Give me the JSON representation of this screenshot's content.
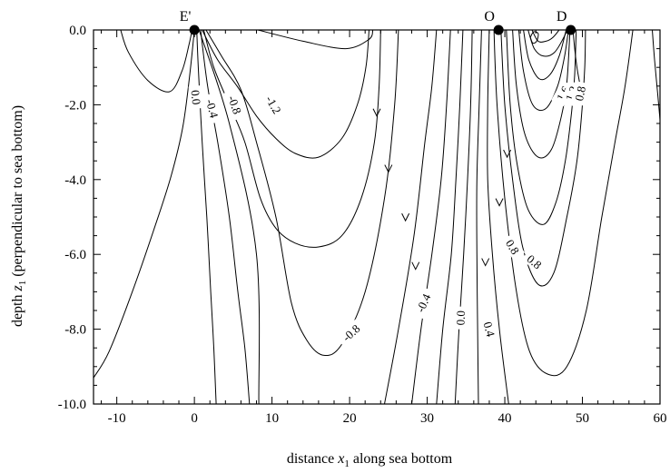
{
  "chart_data": {
    "type": "contour",
    "xlabel": {
      "prefix": "distance ",
      "var": "x",
      "sub": "1",
      "suffix": " along sea bottom"
    },
    "ylabel": {
      "prefix": "depth ",
      "var": "z",
      "sub": "1",
      "suffix": "  (perpendicular to sea bottom)"
    },
    "xlim": [
      -13,
      60
    ],
    "ylim": [
      -10,
      0
    ],
    "x_ticks": [
      -10,
      0,
      10,
      20,
      30,
      40,
      50,
      60
    ],
    "x_tick_labels": [
      "-10",
      "0",
      "10",
      "20",
      "30",
      "40",
      "50",
      "60"
    ],
    "y_ticks": [
      0,
      -2,
      -4,
      -6,
      -8,
      -10
    ],
    "y_tick_labels": [
      "0.0",
      "-2.0",
      "-4.0",
      "-6.0",
      "-8.0",
      "-10.0"
    ],
    "x_minor_step": 2,
    "y_minor_step": 0.5,
    "surface_points": [
      {
        "label": "E'",
        "x": 0,
        "z": 0
      },
      {
        "label": "O",
        "x": 39.2,
        "z": 0
      },
      {
        "label": "D",
        "x": 48.5,
        "z": 0
      }
    ],
    "contours": [
      {
        "points": [
          [
            -13,
            -9.3
          ],
          [
            -11,
            -8.6
          ],
          [
            -8,
            -7
          ],
          [
            -5,
            -5.2
          ],
          [
            -3,
            -3.9
          ],
          [
            -1.5,
            -2.6
          ],
          [
            -0.6,
            -1.2
          ],
          [
            0,
            0
          ]
        ]
      },
      {
        "points": [
          [
            0.3,
            0
          ],
          [
            0.5,
            -1
          ],
          [
            1,
            -3
          ],
          [
            1.6,
            -5
          ],
          [
            2.1,
            -7
          ],
          [
            2.5,
            -8.5
          ],
          [
            2.8,
            -10
          ]
        ]
      },
      {
        "points": [
          [
            0.8,
            0
          ],
          [
            1.7,
            -1.5
          ],
          [
            3,
            -3
          ],
          [
            4.5,
            -5
          ],
          [
            5.6,
            -7
          ],
          [
            6.5,
            -8.5
          ],
          [
            7.1,
            -10
          ]
        ]
      },
      {
        "points": [
          [
            1.2,
            0
          ],
          [
            2.5,
            -1
          ],
          [
            4.5,
            -2
          ],
          [
            6.5,
            -3
          ],
          [
            8.5,
            -4.5
          ],
          [
            10.5,
            -5.3
          ],
          [
            13,
            -5.7
          ],
          [
            16,
            -5.8
          ],
          [
            19,
            -5.5
          ],
          [
            21.5,
            -4.5
          ],
          [
            23.2,
            -3
          ],
          [
            23.8,
            -1.5
          ],
          [
            24,
            0
          ]
        ]
      },
      {
        "points": [
          [
            1,
            0
          ],
          [
            3,
            -0.8
          ],
          [
            5.5,
            -1.5
          ],
          [
            8,
            -2.3
          ],
          [
            10.5,
            -2.9
          ],
          [
            13,
            -3.3
          ],
          [
            16,
            -3.4
          ],
          [
            19,
            -2.9
          ],
          [
            21,
            -2
          ],
          [
            22.1,
            -1
          ],
          [
            22.5,
            0
          ]
        ]
      },
      {
        "points": [
          [
            1.5,
            0
          ],
          [
            3.5,
            -0.7
          ],
          [
            6,
            -1.6
          ],
          [
            8,
            -3
          ],
          [
            10.5,
            -5
          ],
          [
            12.5,
            -7.3
          ],
          [
            14.5,
            -8.3
          ],
          [
            16.7,
            -8.7
          ],
          [
            19,
            -8.4
          ],
          [
            22,
            -7
          ],
          [
            24.5,
            -4.5
          ],
          [
            25.8,
            -2
          ],
          [
            26.3,
            0
          ]
        ]
      },
      {
        "points": [
          [
            0.6,
            0
          ],
          [
            4.5,
            -2.5
          ],
          [
            8,
            -6
          ],
          [
            8.3,
            -10
          ]
        ]
      },
      {
        "points": [
          [
            -9.5,
            0
          ],
          [
            -8.5,
            -0.6
          ],
          [
            -6,
            -1.35
          ],
          [
            -3.2,
            -1.65
          ],
          [
            -1.6,
            -1.1
          ],
          [
            -0.7,
            -0.4
          ],
          [
            -0.3,
            0
          ]
        ]
      },
      {
        "points": [
          [
            8.2,
            0
          ],
          [
            14,
            -0.3
          ],
          [
            19.5,
            -0.5
          ],
          [
            22.5,
            -0.25
          ],
          [
            23,
            0
          ]
        ]
      },
      {
        "points": [
          [
            24.5,
            -10
          ],
          [
            26.3,
            -8
          ],
          [
            28.3,
            -5.5
          ],
          [
            29.7,
            -3
          ],
          [
            30.6,
            -1.5
          ],
          [
            31.2,
            0
          ]
        ]
      },
      {
        "points": [
          [
            28,
            -10
          ],
          [
            29.2,
            -8
          ],
          [
            30.6,
            -6
          ],
          [
            31.8,
            -4
          ],
          [
            32.5,
            -2
          ],
          [
            33,
            0
          ]
        ]
      },
      {
        "points": [
          [
            31.2,
            -10
          ],
          [
            32,
            -8
          ],
          [
            33.1,
            -6
          ],
          [
            33.7,
            -4
          ],
          [
            34.2,
            -2
          ],
          [
            34.6,
            0
          ]
        ]
      },
      {
        "points": [
          [
            33.6,
            -10
          ],
          [
            34.1,
            -8
          ],
          [
            34.7,
            -6
          ],
          [
            35.2,
            -4
          ],
          [
            35.6,
            -2
          ],
          [
            35.8,
            0
          ]
        ]
      },
      {
        "points": [
          [
            36.6,
            -10
          ],
          [
            36.5,
            -8
          ],
          [
            36.4,
            -6
          ],
          [
            36.4,
            -4
          ],
          [
            36.7,
            -2
          ],
          [
            37,
            0
          ]
        ]
      },
      {
        "points": [
          [
            40.5,
            -10
          ],
          [
            39.3,
            -8
          ],
          [
            38.4,
            -6
          ],
          [
            37.8,
            -4
          ],
          [
            37.8,
            -2
          ],
          [
            38,
            0
          ]
        ]
      },
      {
        "points": [
          [
            38.6,
            0
          ],
          [
            39,
            -2
          ],
          [
            40,
            -4.5
          ],
          [
            41.5,
            -7
          ],
          [
            43.2,
            -8.6
          ],
          [
            45.5,
            -9.2
          ],
          [
            48,
            -9
          ],
          [
            50.5,
            -7.5
          ],
          [
            52.5,
            -5
          ],
          [
            54.2,
            -3
          ],
          [
            55.5,
            -1.5
          ],
          [
            56.5,
            0
          ]
        ]
      },
      {
        "points": [
          [
            39.5,
            0
          ],
          [
            40,
            -2
          ],
          [
            41,
            -4
          ],
          [
            42.3,
            -5.8
          ],
          [
            44.3,
            -6.8
          ],
          [
            46.3,
            -6.5
          ],
          [
            48,
            -5
          ],
          [
            49.3,
            -3.5
          ],
          [
            50,
            -2
          ],
          [
            50.3,
            -1
          ],
          [
            50.4,
            0
          ]
        ]
      },
      {
        "points": [
          [
            40.2,
            0
          ],
          [
            40.7,
            -2
          ],
          [
            41.6,
            -3.6
          ],
          [
            43,
            -4.8
          ],
          [
            45,
            -5.2
          ],
          [
            46.6,
            -4.6
          ],
          [
            47.8,
            -3.5
          ],
          [
            48.6,
            -2.2
          ],
          [
            49,
            -1.2
          ],
          [
            49.2,
            0
          ]
        ]
      },
      {
        "points": [
          [
            41,
            0
          ],
          [
            41.5,
            -1.5
          ],
          [
            42.6,
            -2.8
          ],
          [
            44.3,
            -3.4
          ],
          [
            46,
            -3.2
          ],
          [
            47.3,
            -2.3
          ],
          [
            48,
            -1.4
          ],
          [
            48.4,
            0
          ]
        ]
      },
      {
        "points": [
          [
            41.8,
            0
          ],
          [
            42.4,
            -1.1
          ],
          [
            43.6,
            -2
          ],
          [
            45.3,
            -2.1
          ],
          [
            46.8,
            -1.5
          ],
          [
            47.7,
            -0.7
          ],
          [
            48.2,
            0
          ]
        ]
      },
      {
        "points": [
          [
            42.4,
            0
          ],
          [
            43.1,
            -0.8
          ],
          [
            44.4,
            -1.3
          ],
          [
            45.8,
            -1.2
          ],
          [
            47,
            -0.7
          ],
          [
            47.9,
            0
          ]
        ]
      },
      {
        "points": [
          [
            43,
            0
          ],
          [
            43.8,
            -0.5
          ],
          [
            45,
            -0.7
          ],
          [
            46.4,
            -0.6
          ],
          [
            47.6,
            -0.2
          ],
          [
            48,
            0
          ]
        ]
      },
      {
        "points": [
          [
            43.5,
            0
          ],
          [
            44.3,
            -0.3
          ],
          [
            45.3,
            -0.3
          ],
          [
            46.2,
            -0.2
          ],
          [
            47,
            0
          ]
        ]
      },
      {
        "points": [
          [
            43.3,
            -0.2
          ],
          [
            43.7,
            -0.05
          ],
          [
            44.3,
            -0.1
          ],
          [
            44.1,
            -0.3
          ],
          [
            43.6,
            -0.35
          ],
          [
            43.3,
            -0.2
          ]
        ]
      },
      {
        "points": [
          [
            48.8,
            0
          ],
          [
            49,
            -0.5
          ],
          [
            49.3,
            -1
          ],
          [
            49.7,
            -1.5
          ],
          [
            50,
            -2
          ]
        ]
      },
      {
        "points": [
          [
            59,
            0
          ],
          [
            59.3,
            -0.8
          ],
          [
            59.7,
            -1.7
          ],
          [
            60,
            -2.4
          ]
        ]
      }
    ],
    "contour_labels": [
      {
        "text": "0.0",
        "x": 0.2,
        "z": -1.8,
        "angle": 84
      },
      {
        "text": "-0.4",
        "x": 2.3,
        "z": -2.1,
        "angle": 75
      },
      {
        "text": "-0.8",
        "x": 5.2,
        "z": -2.0,
        "angle": 70
      },
      {
        "text": "-1.2",
        "x": 10.2,
        "z": -2.0,
        "angle": 60
      },
      {
        "text": "-0.8",
        "x": 20.2,
        "z": -8.1,
        "angle": -42
      },
      {
        "text": "-0.4",
        "x": 29.5,
        "z": -7.3,
        "angle": -66
      },
      {
        "text": "0.0",
        "x": 34.3,
        "z": -7.7,
        "angle": -88
      },
      {
        "text": "0.4",
        "x": 38.0,
        "z": -8.0,
        "angle": 75
      },
      {
        "text": "0.8",
        "x": 41.0,
        "z": -5.8,
        "angle": 58
      },
      {
        "text": "0.8",
        "x": 43.8,
        "z": -6.2,
        "angle": 40
      },
      {
        "text": "1.6",
        "x": 47.5,
        "z": -1.7,
        "angle": -62
      },
      {
        "text": "1.2",
        "x": 48.6,
        "z": -1.7,
        "angle": -70
      },
      {
        "text": "0.8",
        "x": 49.7,
        "z": -1.7,
        "angle": -78
      }
    ],
    "arrows": [
      {
        "x": 23.5,
        "z": -2.3
      },
      {
        "x": 25.0,
        "z": -3.8
      },
      {
        "x": 27.2,
        "z": -5.1
      },
      {
        "x": 28.5,
        "z": -6.4
      },
      {
        "x": 37.5,
        "z": -6.3
      },
      {
        "x": 39.3,
        "z": -4.7
      },
      {
        "x": 40.3,
        "z": -3.4
      }
    ]
  }
}
